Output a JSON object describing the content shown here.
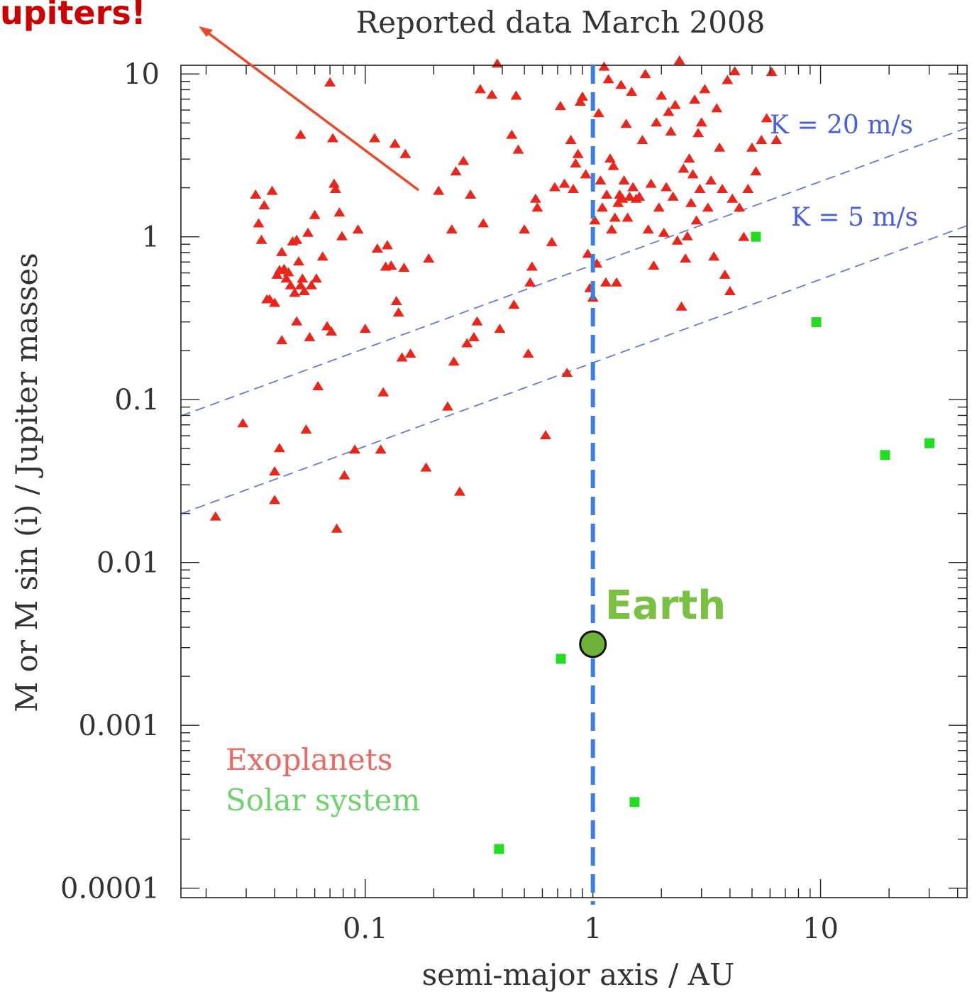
{
  "chart_data": {
    "type": "scatter",
    "title": "Reported data March 2008",
    "xlabel": "semi-major axis / AU",
    "ylabel": "M or M sin (i) / Jupiter masses",
    "x_scale": "log",
    "y_scale": "log",
    "xlim": [
      0.0155,
      44
    ],
    "ylim": [
      8.75e-05,
      11.3
    ],
    "x_ticks": [
      {
        "value": 0.1,
        "label": "0.1"
      },
      {
        "value": 1,
        "label": "1"
      },
      {
        "value": 10,
        "label": "10"
      }
    ],
    "y_ticks": [
      {
        "value": 0.0001,
        "label": "0.0001"
      },
      {
        "value": 0.001,
        "label": "0.001"
      },
      {
        "value": 0.01,
        "label": "0.01"
      },
      {
        "value": 0.1,
        "label": "0.1"
      },
      {
        "value": 1,
        "label": "1"
      },
      {
        "value": 10,
        "label": "10"
      }
    ],
    "legend": {
      "placement": "bottom-left",
      "entries": [
        {
          "label": "Exoplanets",
          "color": "#e86a62"
        },
        {
          "label": "Solar system",
          "color": "#6ed36e"
        }
      ]
    },
    "reference_lines": [
      {
        "label": "K = 20 m/s",
        "x": [
          0.0155,
          44
        ],
        "y": [
          0.0794,
          4.67
        ],
        "color": "#6677dd"
      },
      {
        "label": "K = 5 m/s",
        "x": [
          0.0155,
          44
        ],
        "y": [
          0.0199,
          1.17
        ],
        "color": "#6677dd"
      }
    ],
    "vertical_line": {
      "x": 1.0,
      "color": "#3a7ee8"
    },
    "annotations": {
      "top_left_text": "upiters!",
      "earth_label": "Earth",
      "earth_point": {
        "x": 1.0,
        "y": 0.00315
      }
    },
    "series": [
      {
        "name": "Exoplanets",
        "marker": "triangle",
        "color": "#e8261c",
        "points": [
          [
            0.022,
            0.019
          ],
          [
            0.029,
            0.071
          ],
          [
            0.033,
            1.8
          ],
          [
            0.034,
            1.2
          ],
          [
            0.035,
            0.95
          ],
          [
            0.036,
            1.55
          ],
          [
            0.037,
            0.41
          ],
          [
            0.038,
            0.41
          ],
          [
            0.039,
            1.9
          ],
          [
            0.04,
            0.39
          ],
          [
            0.041,
            0.58
          ],
          [
            0.042,
            0.62
          ],
          [
            0.043,
            0.8
          ],
          [
            0.044,
            0.63
          ],
          [
            0.045,
            0.55
          ],
          [
            0.046,
            0.6
          ],
          [
            0.047,
            0.5
          ],
          [
            0.048,
            0.93
          ],
          [
            0.049,
            0.45
          ],
          [
            0.05,
            0.95
          ],
          [
            0.051,
            0.7
          ],
          [
            0.052,
            0.5
          ],
          [
            0.053,
            0.55
          ],
          [
            0.054,
            0.46
          ],
          [
            0.056,
            1.05
          ],
          [
            0.058,
            0.5
          ],
          [
            0.06,
            1.35
          ],
          [
            0.061,
            0.55
          ],
          [
            0.04,
            0.036
          ],
          [
            0.04,
            0.024
          ],
          [
            0.042,
            0.05
          ],
          [
            0.043,
            0.23
          ],
          [
            0.05,
            0.3
          ],
          [
            0.052,
            4.2
          ],
          [
            0.055,
            0.065
          ],
          [
            0.057,
            0.24
          ],
          [
            0.062,
            0.12
          ],
          [
            0.065,
            0.75
          ],
          [
            0.068,
            0.28
          ],
          [
            0.07,
            8.8
          ],
          [
            0.071,
            0.26
          ],
          [
            0.072,
            4.0
          ],
          [
            0.073,
            2.1
          ],
          [
            0.074,
            1.95
          ],
          [
            0.075,
            0.016
          ],
          [
            0.077,
            1.4
          ],
          [
            0.079,
            1.0
          ],
          [
            0.081,
            0.034
          ],
          [
            0.09,
            0.049
          ],
          [
            0.093,
            1.1
          ],
          [
            0.1,
            0.27
          ],
          [
            0.11,
            4.0
          ],
          [
            0.113,
            0.84
          ],
          [
            0.117,
            0.049
          ],
          [
            0.12,
            0.11
          ],
          [
            0.123,
            0.65
          ],
          [
            0.125,
            0.88
          ],
          [
            0.13,
            0.66
          ],
          [
            0.135,
            3.7
          ],
          [
            0.137,
            0.4
          ],
          [
            0.14,
            0.34
          ],
          [
            0.145,
            0.18
          ],
          [
            0.148,
            0.64
          ],
          [
            0.15,
            3.2
          ],
          [
            0.158,
            0.19
          ],
          [
            0.185,
            0.038
          ],
          [
            0.19,
            0.73
          ],
          [
            0.21,
            1.9
          ],
          [
            0.23,
            0.09
          ],
          [
            0.24,
            1.1
          ],
          [
            0.245,
            0.17
          ],
          [
            0.25,
            2.5
          ],
          [
            0.26,
            0.027
          ],
          [
            0.27,
            2.9
          ],
          [
            0.28,
            0.22
          ],
          [
            0.29,
            1.8
          ],
          [
            0.3,
            0.24
          ],
          [
            0.31,
            0.3
          ],
          [
            0.32,
            8.0
          ],
          [
            0.33,
            1.2
          ],
          [
            0.36,
            7.4
          ],
          [
            0.38,
            11.5
          ],
          [
            0.39,
            0.27
          ],
          [
            0.44,
            4.2
          ],
          [
            0.45,
            0.38
          ],
          [
            0.46,
            7.3
          ],
          [
            0.47,
            3.4
          ],
          [
            0.5,
            1.1
          ],
          [
            0.52,
            0.19
          ],
          [
            0.53,
            0.52
          ],
          [
            0.54,
            0.65
          ],
          [
            0.56,
            1.7
          ],
          [
            0.57,
            1.5
          ],
          [
            0.62,
            0.06
          ],
          [
            0.66,
            0.92
          ],
          [
            0.68,
            2.0
          ],
          [
            0.72,
            6.3
          ],
          [
            0.75,
            2.1
          ],
          [
            0.77,
            0.145
          ],
          [
            0.8,
            3.9
          ],
          [
            0.82,
            1.95
          ],
          [
            0.84,
            2.8
          ],
          [
            0.86,
            3.2
          ],
          [
            0.88,
            6.7
          ],
          [
            0.9,
            7.2
          ],
          [
            0.93,
            2.4
          ],
          [
            0.95,
            0.78
          ],
          [
            0.97,
            0.48
          ],
          [
            1.0,
            0.42
          ],
          [
            1.02,
            1.25
          ],
          [
            1.04,
            0.68
          ],
          [
            1.06,
            5.7
          ],
          [
            1.08,
            2.2
          ],
          [
            1.1,
            1.5
          ],
          [
            1.12,
            11.0
          ],
          [
            1.14,
            0.52
          ],
          [
            1.15,
            1.8
          ],
          [
            1.17,
            9.2
          ],
          [
            1.19,
            3.0
          ],
          [
            1.21,
            1.1
          ],
          [
            1.23,
            2.7
          ],
          [
            1.25,
            1.3
          ],
          [
            1.27,
            0.52
          ],
          [
            1.29,
            1.6
          ],
          [
            1.31,
            1.8
          ],
          [
            1.33,
            8.5
          ],
          [
            1.35,
            1.7
          ],
          [
            1.37,
            2.2
          ],
          [
            1.4,
            4.9
          ],
          [
            1.42,
            1.3
          ],
          [
            1.45,
            1.75
          ],
          [
            1.48,
            7.7
          ],
          [
            1.5,
            2.0
          ],
          [
            1.55,
            1.7
          ],
          [
            1.6,
            1.75
          ],
          [
            1.65,
            3.9
          ],
          [
            1.7,
            9.9
          ],
          [
            1.75,
            1.1
          ],
          [
            1.8,
            2.1
          ],
          [
            1.85,
            0.66
          ],
          [
            1.9,
            5.0
          ],
          [
            1.95,
            1.5
          ],
          [
            2.0,
            7.3
          ],
          [
            2.05,
            1.05
          ],
          [
            2.1,
            2.0
          ],
          [
            2.15,
            5.8
          ],
          [
            2.2,
            4.4
          ],
          [
            2.25,
            1.75
          ],
          [
            2.3,
            6.4
          ],
          [
            2.35,
            0.94
          ],
          [
            2.4,
            12.0
          ],
          [
            2.45,
            0.37
          ],
          [
            2.5,
            2.6
          ],
          [
            2.55,
            0.73
          ],
          [
            2.6,
            1.0
          ],
          [
            2.65,
            3.0
          ],
          [
            2.7,
            1.6
          ],
          [
            2.75,
            2.4
          ],
          [
            2.8,
            6.9
          ],
          [
            2.85,
            1.25
          ],
          [
            2.9,
            4.3
          ],
          [
            2.95,
            1.95
          ],
          [
            3.0,
            5.0
          ],
          [
            3.1,
            8.0
          ],
          [
            3.2,
            1.5
          ],
          [
            3.3,
            2.2
          ],
          [
            3.4,
            0.75
          ],
          [
            3.5,
            6.1
          ],
          [
            3.6,
            3.5
          ],
          [
            3.7,
            1.95
          ],
          [
            3.8,
            0.58
          ],
          [
            3.9,
            9.1
          ],
          [
            4.0,
            0.46
          ],
          [
            4.1,
            1.7
          ],
          [
            4.2,
            10.3
          ],
          [
            4.4,
            1.5
          ],
          [
            4.6,
            0.99
          ],
          [
            4.8,
            1.95
          ],
          [
            5.0,
            3.5
          ],
          [
            5.2,
            2.5
          ],
          [
            5.5,
            3.9
          ],
          [
            5.8,
            5.3
          ],
          [
            6.1,
            10.2
          ],
          [
            6.4,
            3.9
          ]
        ]
      },
      {
        "name": "Solar system",
        "marker": "square",
        "color": "#22dd22",
        "points": [
          [
            0.387,
            0.000174
          ],
          [
            0.723,
            0.00256
          ],
          [
            1.524,
            0.000338
          ],
          [
            5.2,
            1.0
          ],
          [
            9.58,
            0.299
          ],
          [
            19.2,
            0.0457
          ],
          [
            30.1,
            0.054
          ]
        ]
      }
    ]
  }
}
